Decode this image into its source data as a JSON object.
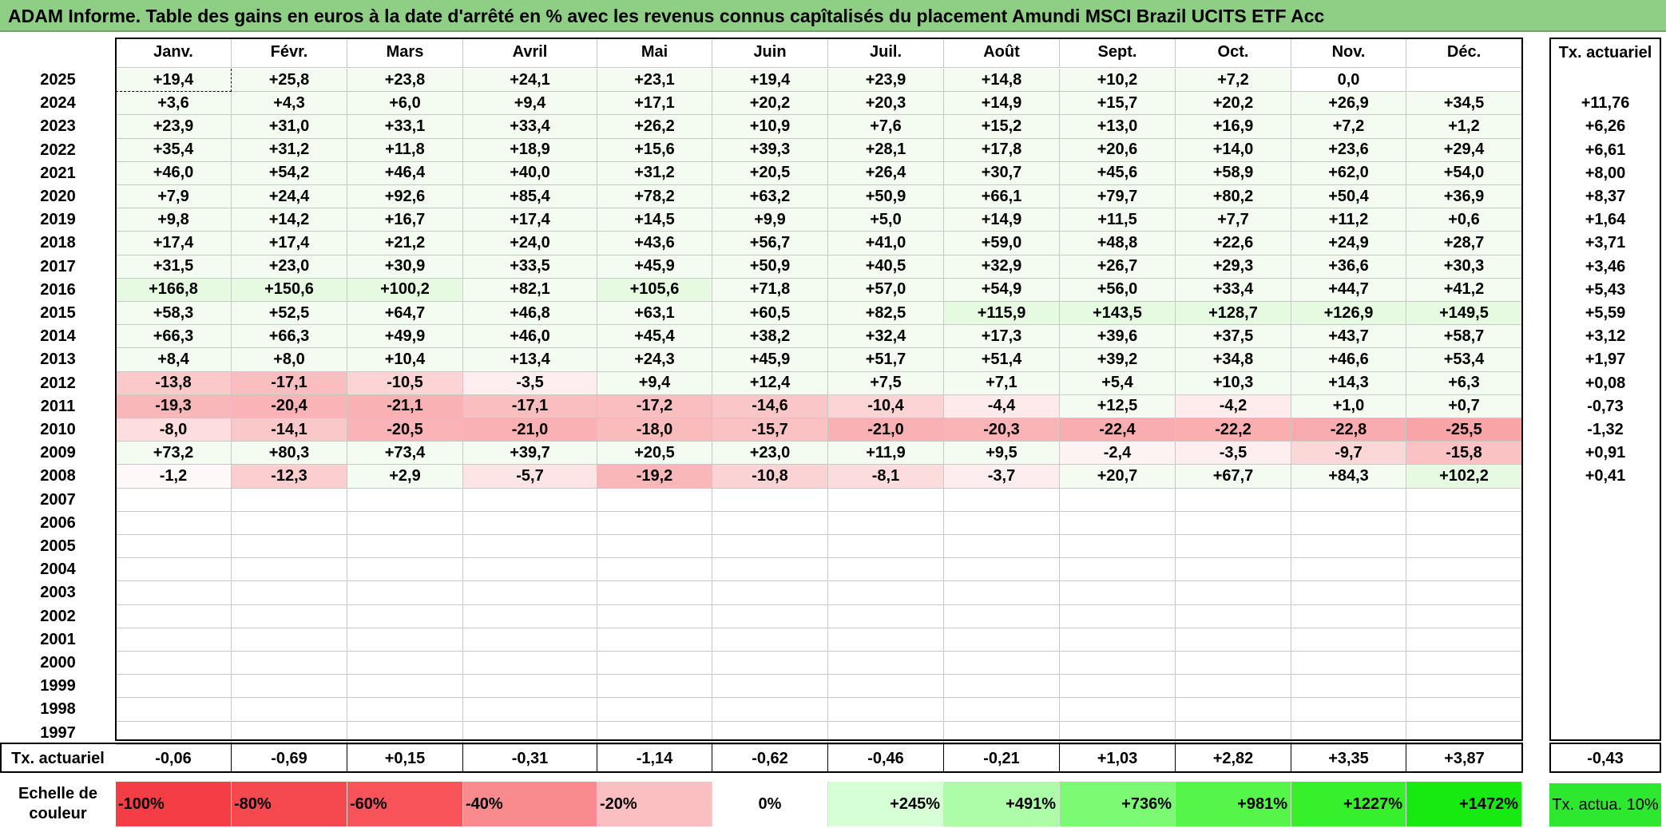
{
  "title": "ADAM Informe. Table des gains en euros à la date d'arrêté en % avec les revenus connus capîtalisés du placement Amundi MSCI Brazil UCITS ETF Acc",
  "months": [
    "Janv.",
    "Févr.",
    "Mars",
    "Avril",
    "Mai",
    "Juin",
    "Juil.",
    "Août",
    "Sept.",
    "Oct.",
    "Nov.",
    "Déc."
  ],
  "rate_header": "Tx. actuariel",
  "rows": [
    {
      "year": "2025",
      "values": [
        "+19,4",
        "+25,8",
        "+23,8",
        "+24,1",
        "+23,1",
        "+19,4",
        "+23,9",
        "+14,8",
        "+10,2",
        "+7,2",
        "0,0",
        ""
      ],
      "rate": ""
    },
    {
      "year": "2024",
      "values": [
        "+3,6",
        "+4,3",
        "+6,0",
        "+9,4",
        "+17,1",
        "+20,2",
        "+20,3",
        "+14,9",
        "+15,7",
        "+20,2",
        "+26,9",
        "+34,5"
      ],
      "rate": "+11,76"
    },
    {
      "year": "2023",
      "values": [
        "+23,9",
        "+31,0",
        "+33,1",
        "+33,4",
        "+26,2",
        "+10,9",
        "+7,6",
        "+15,2",
        "+13,0",
        "+16,9",
        "+7,2",
        "+1,2"
      ],
      "rate": "+6,26"
    },
    {
      "year": "2022",
      "values": [
        "+35,4",
        "+31,2",
        "+11,8",
        "+18,9",
        "+15,6",
        "+39,3",
        "+28,1",
        "+17,8",
        "+20,6",
        "+14,0",
        "+23,6",
        "+29,4"
      ],
      "rate": "+6,61"
    },
    {
      "year": "2021",
      "values": [
        "+46,0",
        "+54,2",
        "+46,4",
        "+40,0",
        "+31,2",
        "+20,5",
        "+26,4",
        "+30,7",
        "+45,6",
        "+58,9",
        "+62,0",
        "+54,0"
      ],
      "rate": "+8,00"
    },
    {
      "year": "2020",
      "values": [
        "+7,9",
        "+24,4",
        "+92,6",
        "+85,4",
        "+78,2",
        "+63,2",
        "+50,9",
        "+66,1",
        "+79,7",
        "+80,2",
        "+50,4",
        "+36,9"
      ],
      "rate": "+8,37"
    },
    {
      "year": "2019",
      "values": [
        "+9,8",
        "+14,2",
        "+16,7",
        "+17,4",
        "+14,5",
        "+9,9",
        "+5,0",
        "+14,9",
        "+11,5",
        "+7,7",
        "+11,2",
        "+0,6"
      ],
      "rate": "+1,64"
    },
    {
      "year": "2018",
      "values": [
        "+17,4",
        "+17,4",
        "+21,2",
        "+24,0",
        "+43,6",
        "+56,7",
        "+41,0",
        "+59,0",
        "+48,8",
        "+22,6",
        "+24,9",
        "+28,7"
      ],
      "rate": "+3,71"
    },
    {
      "year": "2017",
      "values": [
        "+31,5",
        "+23,0",
        "+30,9",
        "+33,5",
        "+45,9",
        "+50,9",
        "+40,5",
        "+32,9",
        "+26,7",
        "+29,3",
        "+36,6",
        "+30,3"
      ],
      "rate": "+3,46"
    },
    {
      "year": "2016",
      "values": [
        "+166,8",
        "+150,6",
        "+100,2",
        "+82,1",
        "+105,6",
        "+71,8",
        "+57,0",
        "+54,9",
        "+56,0",
        "+33,4",
        "+44,7",
        "+41,2"
      ],
      "rate": "+5,43"
    },
    {
      "year": "2015",
      "values": [
        "+58,3",
        "+52,5",
        "+64,7",
        "+46,8",
        "+63,1",
        "+60,5",
        "+82,5",
        "+115,9",
        "+143,5",
        "+128,7",
        "+126,9",
        "+149,5"
      ],
      "rate": "+5,59"
    },
    {
      "year": "2014",
      "values": [
        "+66,3",
        "+66,3",
        "+49,9",
        "+46,0",
        "+45,4",
        "+38,2",
        "+32,4",
        "+17,3",
        "+39,6",
        "+37,5",
        "+43,7",
        "+58,7"
      ],
      "rate": "+3,12"
    },
    {
      "year": "2013",
      "values": [
        "+8,4",
        "+8,0",
        "+10,4",
        "+13,4",
        "+24,3",
        "+45,9",
        "+51,7",
        "+51,4",
        "+39,2",
        "+34,8",
        "+46,6",
        "+53,4"
      ],
      "rate": "+1,97"
    },
    {
      "year": "2012",
      "values": [
        "-13,8",
        "-17,1",
        "-10,5",
        "-3,5",
        "+9,4",
        "+12,4",
        "+7,5",
        "+7,1",
        "+5,4",
        "+10,3",
        "+14,3",
        "+6,3"
      ],
      "rate": "+0,08"
    },
    {
      "year": "2011",
      "values": [
        "-19,3",
        "-20,4",
        "-21,1",
        "-17,1",
        "-17,2",
        "-14,6",
        "-10,4",
        "-4,4",
        "+12,5",
        "-4,2",
        "+1,0",
        "+0,7"
      ],
      "rate": "-0,73"
    },
    {
      "year": "2010",
      "values": [
        "-8,0",
        "-14,1",
        "-20,5",
        "-21,0",
        "-18,0",
        "-15,7",
        "-21,0",
        "-20,3",
        "-22,4",
        "-22,2",
        "-22,8",
        "-25,5"
      ],
      "rate": "-1,32"
    },
    {
      "year": "2009",
      "values": [
        "+73,2",
        "+80,3",
        "+73,4",
        "+39,7",
        "+20,5",
        "+23,0",
        "+11,9",
        "+9,5",
        "-2,4",
        "-3,5",
        "-9,7",
        "-15,8"
      ],
      "rate": "+0,91"
    },
    {
      "year": "2008",
      "values": [
        "-1,2",
        "-12,3",
        "+2,9",
        "-5,7",
        "-19,2",
        "-10,8",
        "-8,1",
        "-3,7",
        "+20,7",
        "+67,7",
        "+84,3",
        "+102,2"
      ],
      "rate": "+0,41"
    },
    {
      "year": "2007",
      "values": [
        "",
        "",
        "",
        "",
        "",
        "",
        "",
        "",
        "",
        "",
        "",
        ""
      ],
      "rate": ""
    },
    {
      "year": "2006",
      "values": [
        "",
        "",
        "",
        "",
        "",
        "",
        "",
        "",
        "",
        "",
        "",
        ""
      ],
      "rate": ""
    },
    {
      "year": "2005",
      "values": [
        "",
        "",
        "",
        "",
        "",
        "",
        "",
        "",
        "",
        "",
        "",
        ""
      ],
      "rate": ""
    },
    {
      "year": "2004",
      "values": [
        "",
        "",
        "",
        "",
        "",
        "",
        "",
        "",
        "",
        "",
        "",
        ""
      ],
      "rate": ""
    },
    {
      "year": "2003",
      "values": [
        "",
        "",
        "",
        "",
        "",
        "",
        "",
        "",
        "",
        "",
        "",
        ""
      ],
      "rate": ""
    },
    {
      "year": "2002",
      "values": [
        "",
        "",
        "",
        "",
        "",
        "",
        "",
        "",
        "",
        "",
        "",
        ""
      ],
      "rate": ""
    },
    {
      "year": "2001",
      "values": [
        "",
        "",
        "",
        "",
        "",
        "",
        "",
        "",
        "",
        "",
        "",
        ""
      ],
      "rate": ""
    },
    {
      "year": "2000",
      "values": [
        "",
        "",
        "",
        "",
        "",
        "",
        "",
        "",
        "",
        "",
        "",
        ""
      ],
      "rate": ""
    },
    {
      "year": "1999",
      "values": [
        "",
        "",
        "",
        "",
        "",
        "",
        "",
        "",
        "",
        "",
        "",
        ""
      ],
      "rate": ""
    },
    {
      "year": "1998",
      "values": [
        "",
        "",
        "",
        "",
        "",
        "",
        "",
        "",
        "",
        "",
        "",
        ""
      ],
      "rate": ""
    },
    {
      "year": "1997",
      "values": [
        "",
        "",
        "",
        "",
        "",
        "",
        "",
        "",
        "",
        "",
        "",
        ""
      ],
      "rate": ""
    }
  ],
  "summary": {
    "label": "Tx. actuariel",
    "values": [
      "-0,06",
      "-0,69",
      "+0,15",
      "-0,31",
      "-1,14",
      "-0,62",
      "-0,46",
      "-0,21",
      "+1,03",
      "+2,82",
      "+3,35",
      "+3,87"
    ],
    "rate": "-0,43"
  },
  "scale": {
    "label": "Echelle de couleur",
    "items": [
      {
        "text": "-100%",
        "color": "#f53d45"
      },
      {
        "text": "-80%",
        "color": "#f6484f"
      },
      {
        "text": "-60%",
        "color": "#f8545a"
      },
      {
        "text": "-40%",
        "color": "#f98a8d"
      },
      {
        "text": "-20%",
        "color": "#fbbfc1"
      },
      {
        "text": "0%",
        "color": "#ffffff"
      },
      {
        "text": "+245%",
        "color": "#d6ffd6"
      },
      {
        "text": "+491%",
        "color": "#acfca8"
      },
      {
        "text": "+736%",
        "color": "#7cfa73"
      },
      {
        "text": "+981%",
        "color": "#55f54a"
      },
      {
        "text": "+1227%",
        "color": "#35f02b"
      },
      {
        "text": "+1472%",
        "color": "#16ea10"
      }
    ],
    "rate_label": "Tx. actua. 10%",
    "rate_color": "#2ee830"
  },
  "colors": {
    "title_bg": "#8ecf85",
    "positive_light": "#f4fcf1",
    "positive_mid": "#e6fae2",
    "negative_max": "#f9a5a8"
  }
}
